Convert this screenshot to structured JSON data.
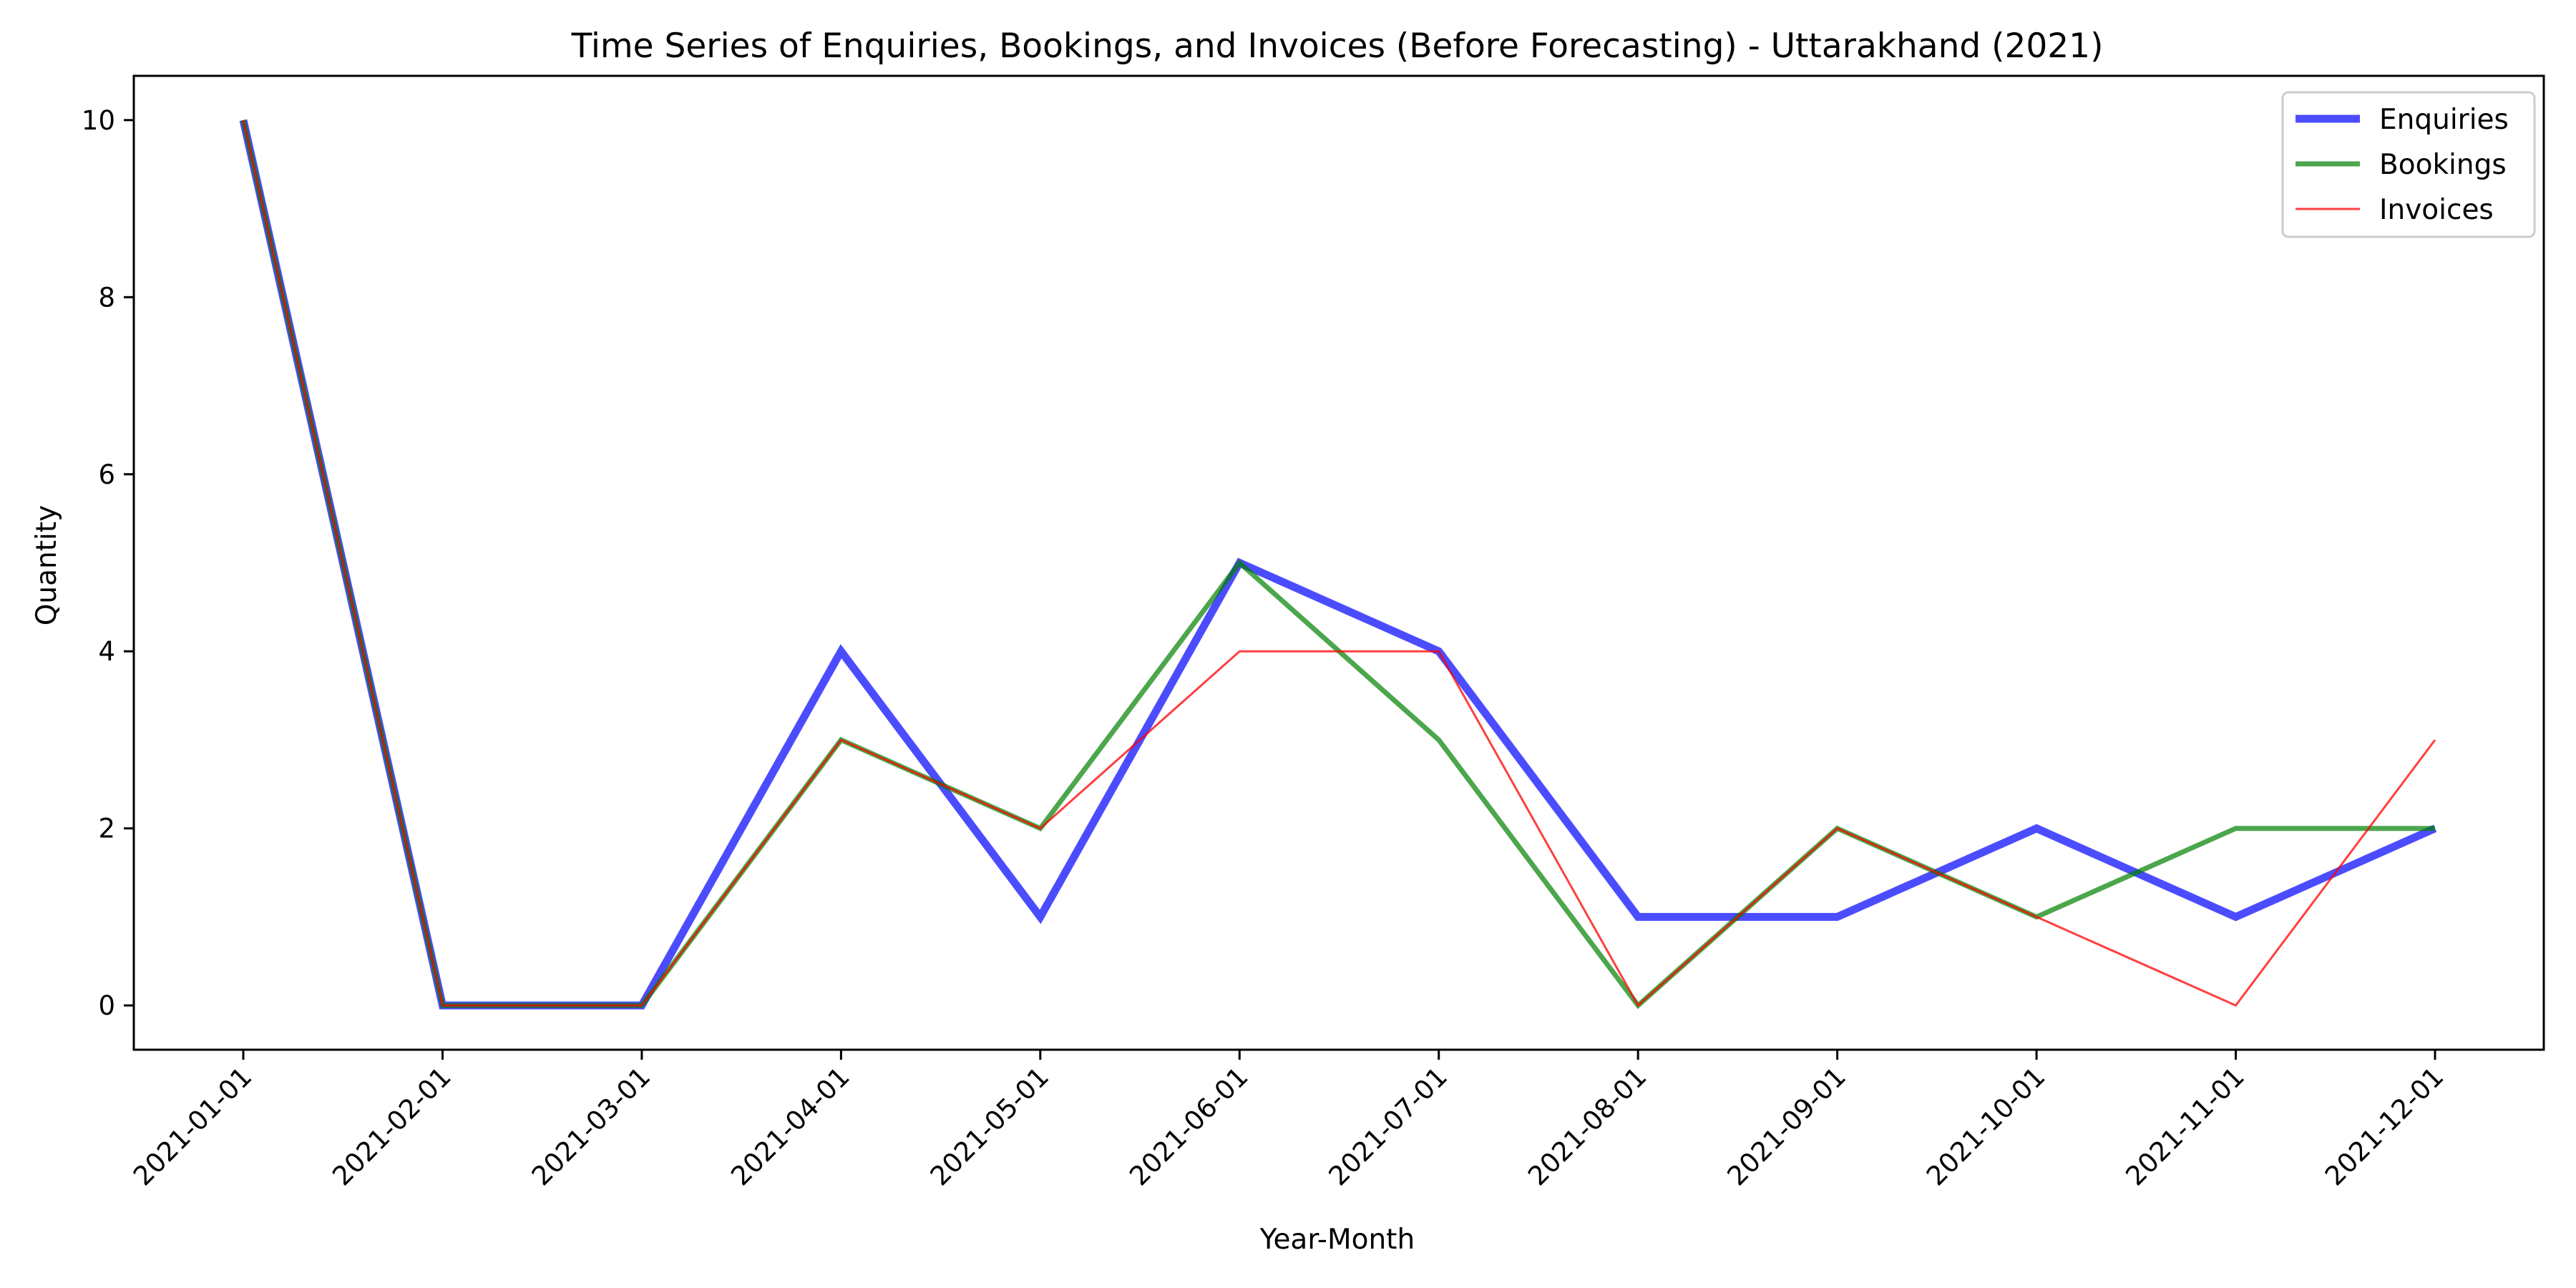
{
  "chart_data": {
    "type": "line",
    "title": "Time Series of Enquiries, Bookings, and Invoices (Before Forecasting) - Uttarakhand (2021)",
    "xlabel": "Year-Month",
    "ylabel": "Quantity",
    "categories": [
      "2021-01-01",
      "2021-02-01",
      "2021-03-01",
      "2021-04-01",
      "2021-05-01",
      "2021-06-01",
      "2021-07-01",
      "2021-08-01",
      "2021-09-01",
      "2021-10-01",
      "2021-11-01",
      "2021-12-01"
    ],
    "yticks": [
      0,
      2,
      4,
      6,
      8,
      10
    ],
    "ylim": [
      -0.5,
      10.5
    ],
    "grid": false,
    "legend_position": "top-right",
    "series": [
      {
        "name": "Enquiries",
        "color": "#0000ff",
        "values": [
          10,
          0,
          0,
          4,
          1,
          5,
          4,
          1,
          1,
          2,
          1,
          2
        ]
      },
      {
        "name": "Bookings",
        "color": "#008000",
        "values": [
          10,
          0,
          0,
          3,
          2,
          5,
          3,
          0,
          2,
          1,
          2,
          2
        ]
      },
      {
        "name": "Invoices",
        "color": "#ff0000",
        "values": [
          10,
          0,
          0,
          3,
          2,
          4,
          4,
          0,
          2,
          1,
          0,
          3
        ]
      }
    ]
  }
}
